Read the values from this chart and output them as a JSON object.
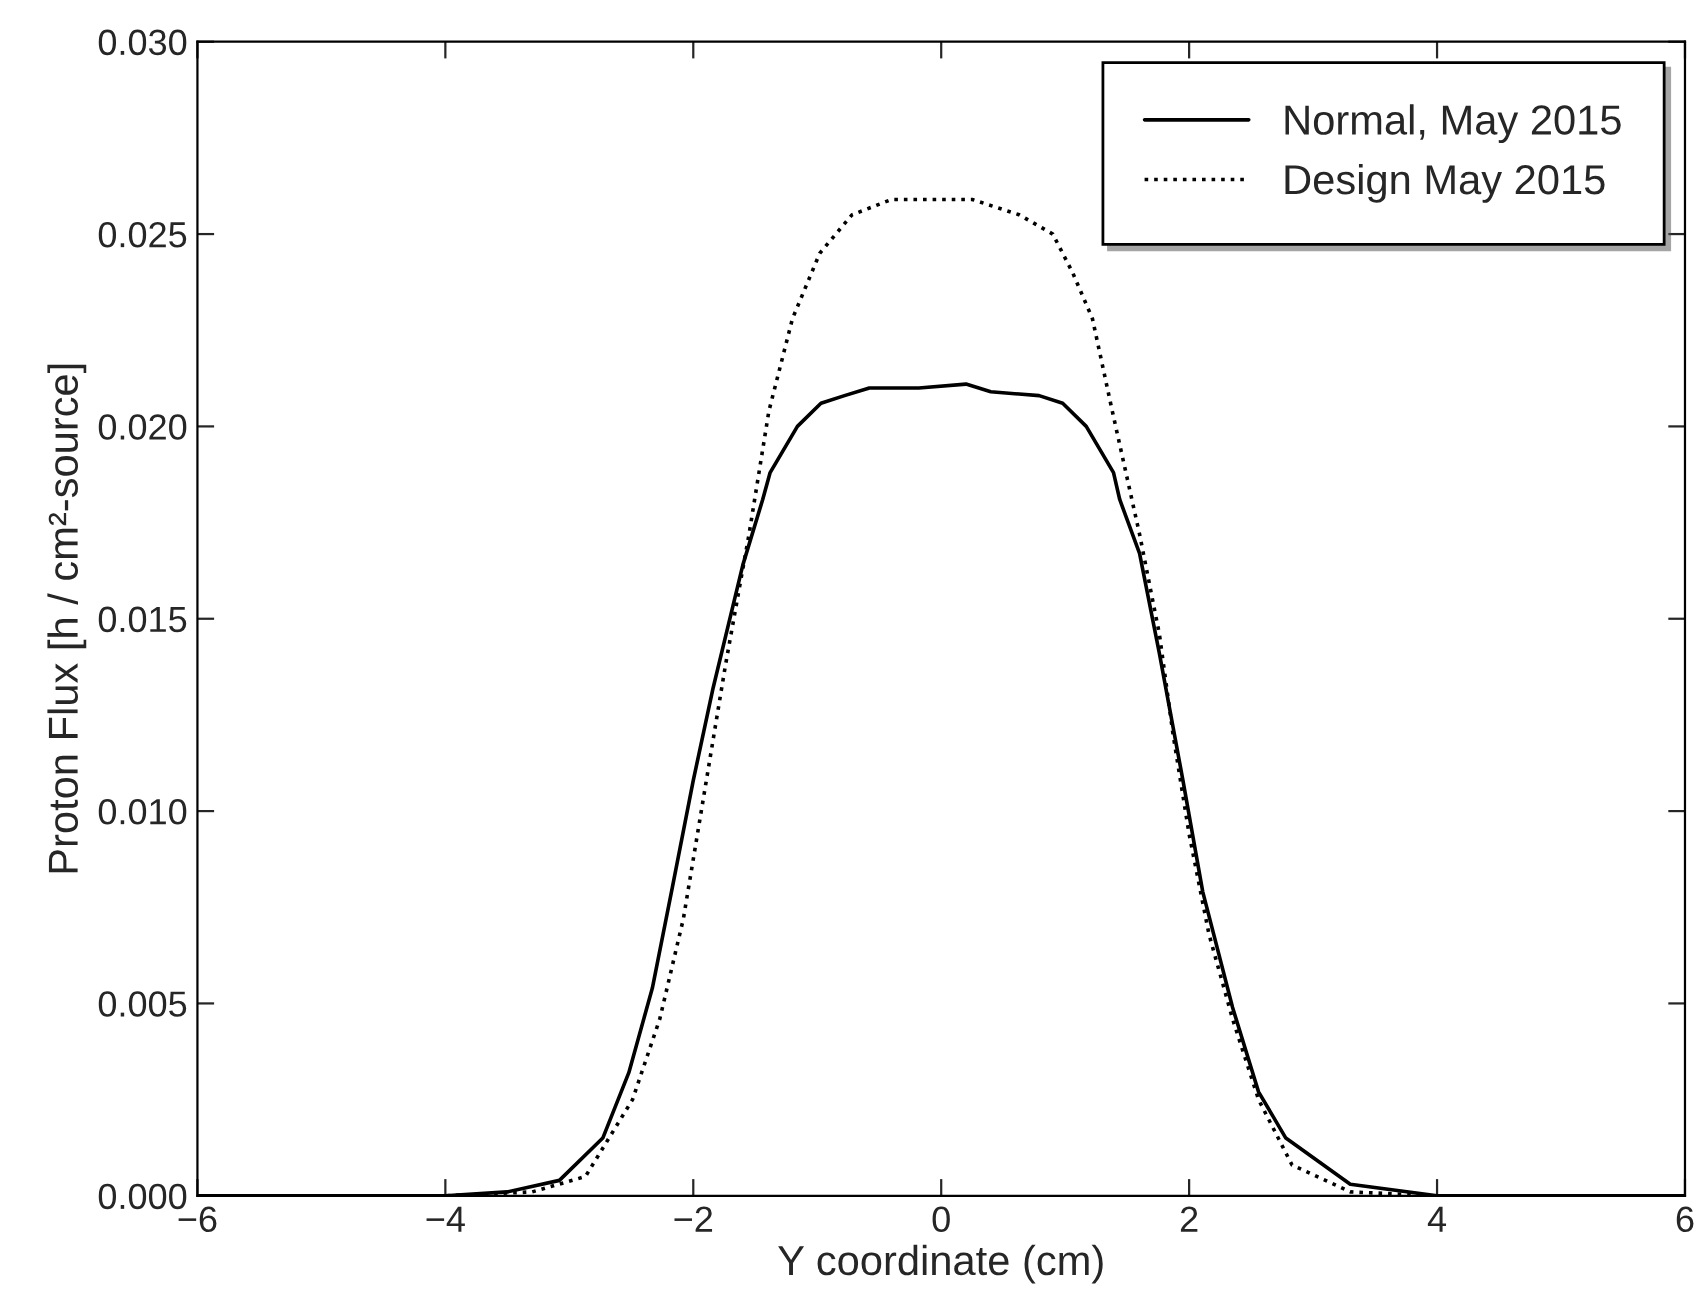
{
  "chart_data": {
    "type": "line",
    "xlabel": "Y coordinate (cm)",
    "ylabel": "Proton Flux [h / cm²-source]",
    "xlim": [
      -6,
      6
    ],
    "ylim": [
      0,
      0.03
    ],
    "xticks": [
      {
        "value": -6,
        "label": "−6"
      },
      {
        "value": -4,
        "label": "−4"
      },
      {
        "value": -2,
        "label": "−2"
      },
      0,
      2,
      4,
      6
    ],
    "yticks": [
      {
        "value": 0,
        "label": "0.000"
      },
      {
        "value": 0.005,
        "label": "0.005"
      },
      {
        "value": 0.01,
        "label": "0.010"
      },
      {
        "value": 0.015,
        "label": "0.015"
      },
      {
        "value": 0.02,
        "label": "0.020"
      },
      {
        "value": 0.025,
        "label": "0.025"
      },
      {
        "value": 0.03,
        "label": "0.030"
      }
    ],
    "grid": false,
    "legend": "top right",
    "marker": "none",
    "series": [
      {
        "name": "Normal, May 2015",
        "color": "#000000",
        "line_style": "solid",
        "x": [
          -6,
          -4,
          -3.5,
          -3.08,
          -2.73,
          -2.52,
          -2.33,
          -2.17,
          -2.0,
          -1.84,
          -1.6,
          -1.44,
          -1.38,
          -1.16,
          -0.97,
          -0.78,
          -0.58,
          -0.18,
          0.2,
          0.4,
          0.79,
          0.98,
          1.17,
          1.39,
          1.44,
          1.6,
          1.76,
          1.95,
          2.11,
          2.35,
          2.56,
          2.78,
          3.3,
          4,
          6
        ],
        "values": [
          0,
          0,
          0.0001,
          0.0004,
          0.0015,
          0.0032,
          0.0054,
          0.008,
          0.0108,
          0.0132,
          0.0164,
          0.0181,
          0.0188,
          0.02,
          0.0206,
          0.0208,
          0.021,
          0.021,
          0.0211,
          0.0209,
          0.0208,
          0.0206,
          0.02,
          0.0188,
          0.0181,
          0.0167,
          0.0141,
          0.0108,
          0.0079,
          0.0049,
          0.0027,
          0.0015,
          0.0003,
          0,
          0
        ]
      },
      {
        "name": "Design May 2015",
        "color": "#000000",
        "line_style": "dotted",
        "x": [
          -6,
          -4,
          -3.3,
          -2.87,
          -2.49,
          -2.27,
          -2.08,
          -1.92,
          -1.74,
          -1.55,
          -1.39,
          -1.2,
          -0.98,
          -0.72,
          -0.4,
          -0.08,
          0.25,
          0.63,
          0.9,
          1.06,
          1.22,
          1.38,
          1.6,
          1.76,
          1.87,
          2.0,
          2.16,
          2.35,
          2.56,
          2.83,
          3.3,
          4,
          6
        ],
        "values": [
          0,
          0,
          0.0001,
          0.0005,
          0.0025,
          0.0046,
          0.0072,
          0.0103,
          0.0138,
          0.0172,
          0.0204,
          0.0228,
          0.0245,
          0.0255,
          0.0259,
          0.0259,
          0.0259,
          0.0255,
          0.025,
          0.024,
          0.0228,
          0.0204,
          0.0172,
          0.0146,
          0.012,
          0.0094,
          0.0068,
          0.0046,
          0.0025,
          0.0008,
          0.0001,
          0,
          0
        ]
      }
    ]
  }
}
